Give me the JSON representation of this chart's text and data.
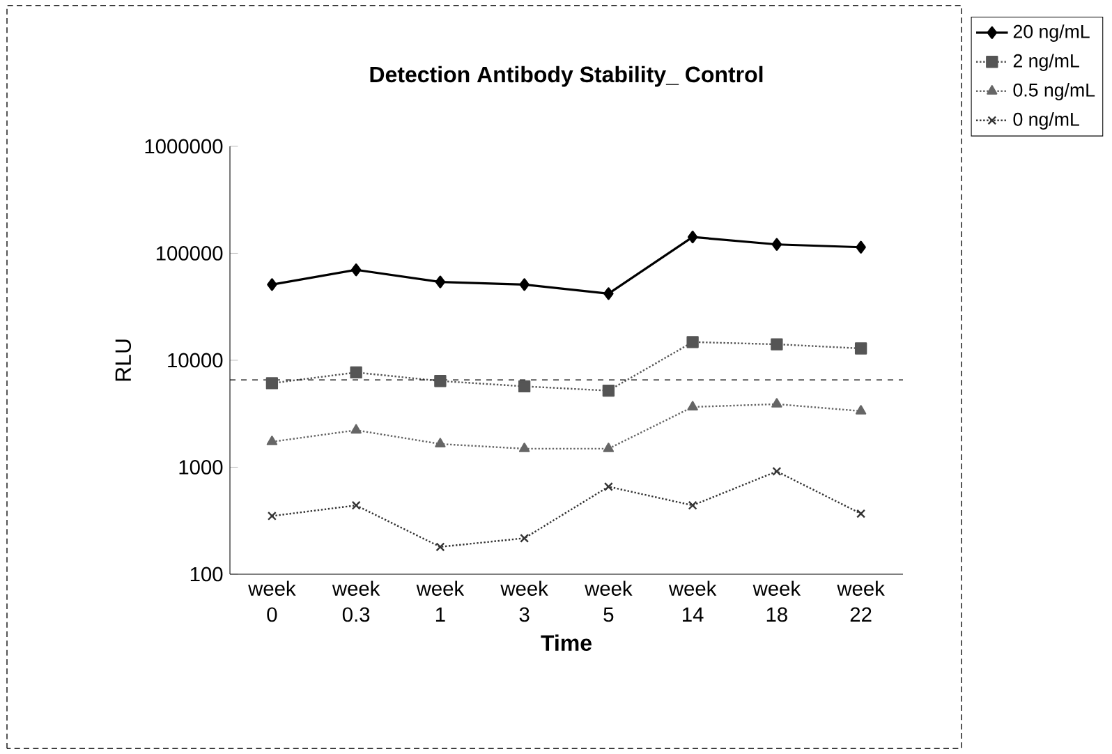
{
  "chart_data": {
    "type": "line",
    "title": "Detection Antibody Stability_ Control",
    "xlabel": "Time",
    "ylabel": "RLU",
    "categories": [
      "week 0",
      "week 0.3",
      "week 1",
      "week 3",
      "week 5",
      "week 14",
      "week 18",
      "week 22"
    ],
    "series": [
      {
        "name": "20 ng/mL",
        "color": "#000000",
        "marker": "diamond",
        "line_style": "solid",
        "values": [
          51000,
          70000,
          54000,
          51000,
          42000,
          142000,
          121000,
          114000
        ]
      },
      {
        "name": "2 ng/mL",
        "color": "#555555",
        "marker": "square",
        "line_style": "dotted",
        "values": [
          6100,
          7700,
          6400,
          5700,
          5200,
          14800,
          14100,
          12900
        ]
      },
      {
        "name": "0.5 ng/mL",
        "color": "#666666",
        "marker": "triangle",
        "line_style": "dotted",
        "values": [
          1730,
          2220,
          1650,
          1490,
          1490,
          3660,
          3890,
          3350
        ]
      },
      {
        "name": "0 ng/mL",
        "color": "#333333",
        "marker": "cross",
        "line_style": "dotted",
        "values": [
          350,
          440,
          180,
          217,
          658,
          440,
          914,
          368
        ]
      }
    ],
    "log": "y",
    "ylim": [
      100,
      1000000
    ],
    "yticks": [
      100,
      1000,
      10000,
      100000,
      1000000
    ],
    "ref_lines": [
      {
        "axis": "y",
        "value": 6550,
        "color": "#000000",
        "line_style": "dashed"
      }
    ],
    "grid": false,
    "legend": "top right"
  }
}
